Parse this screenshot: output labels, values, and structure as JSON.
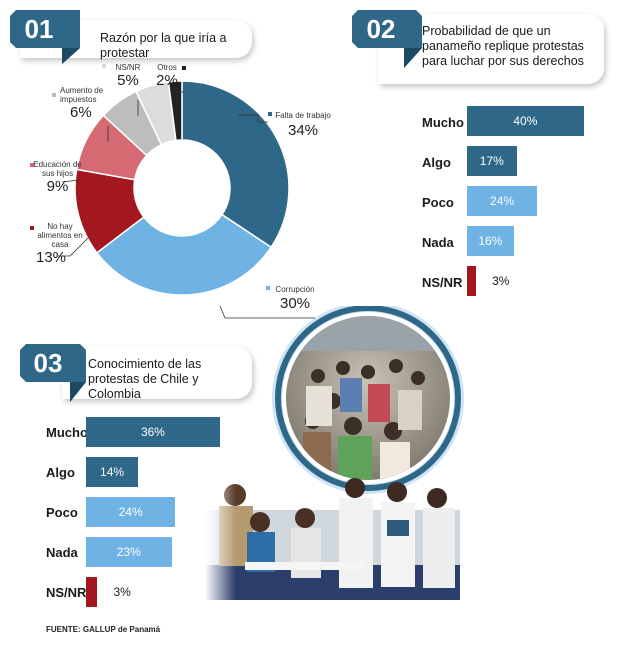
{
  "section1": {
    "number": "01",
    "title": "Razón por la que iría a protestar"
  },
  "section2": {
    "number": "02",
    "title": "Probabilidad de que un panameño replique protestas para luchar por sus derechos"
  },
  "section3": {
    "number": "03",
    "title": "Conocimiento de las protestas de Chile y Colombia"
  },
  "source": "FUENTE: GALLUP de Panamá",
  "colors": {
    "dark_blue": "#2e6787",
    "light_blue": "#6fb2e4",
    "red": "#a3171f",
    "pink": "#d56a73",
    "gray": "#bdbdbd",
    "light_gray": "#dcdcdc",
    "black": "#222222"
  },
  "chart_data": [
    {
      "type": "pie",
      "donut": true,
      "title": "Razón por la que iría a protestar",
      "slices": [
        {
          "label": "Falta de trabajo",
          "pct_label": "34%",
          "value": 34,
          "color": "#2e6787"
        },
        {
          "label": "Corrupción",
          "pct_label": "30%",
          "value": 30,
          "color": "#6fb2e4"
        },
        {
          "label": "No hay alimentos en casa",
          "pct_label": "13%",
          "value": 13,
          "color": "#a3171f"
        },
        {
          "label": "Educación de sus hijos",
          "pct_label": "9%",
          "value": 9,
          "color": "#d56a73"
        },
        {
          "label": "Aumento de impuestos",
          "pct_label": "6%",
          "value": 6,
          "color": "#bdbdbd"
        },
        {
          "label": "NS/NR",
          "pct_label": "5%",
          "value": 5,
          "color": "#dcdcdc"
        },
        {
          "label": "Otros",
          "pct_label": "2%",
          "value": 2,
          "color": "#222222"
        }
      ]
    },
    {
      "type": "bar",
      "orientation": "horizontal",
      "title": "Probabilidad de que un panameño replique protestas para luchar por sus derechos",
      "categories": [
        "Mucho",
        "Algo",
        "Poco",
        "Nada",
        "NS/NR"
      ],
      "values": [
        40,
        17,
        24,
        16,
        3
      ],
      "value_labels": [
        "40%",
        "17%",
        "24%",
        "16%",
        "3%"
      ],
      "colors": [
        "#2e6787",
        "#2e6787",
        "#6fb2e4",
        "#6fb2e4",
        "#a3171f"
      ]
    },
    {
      "type": "bar",
      "orientation": "horizontal",
      "title": "Conocimiento de las protestas de Chile y Colombia",
      "categories": [
        "Mucho",
        "Algo",
        "Poco",
        "Nada",
        "NS/NR"
      ],
      "values": [
        36,
        14,
        24,
        23,
        3
      ],
      "value_labels": [
        "36%",
        "14%",
        "24%",
        "23%",
        "3%"
      ],
      "colors": [
        "#2e6787",
        "#2e6787",
        "#6fb2e4",
        "#6fb2e4",
        "#a3171f"
      ]
    }
  ]
}
